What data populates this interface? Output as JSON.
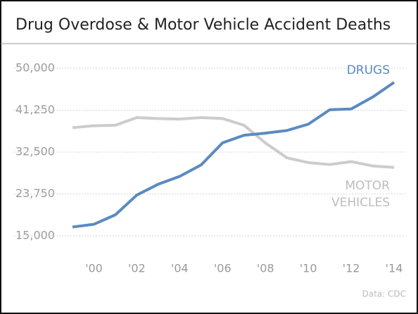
{
  "chart_data": {
    "type": "line",
    "title": "Drug Overdose & Motor Vehicle Accident Deaths",
    "source": "Data: CDC",
    "categories": [
      null,
      "'00",
      null,
      "'02",
      null,
      "'04",
      null,
      "'06",
      null,
      "'08",
      null,
      "'10",
      null,
      "'12",
      null,
      "'14"
    ],
    "series": [
      {
        "name": "DRUGS",
        "color": "#5b8ac1",
        "values": [
          16849,
          17415,
          19394,
          23518,
          25785,
          27424,
          29813,
          34425,
          36010,
          36450,
          37004,
          38329,
          41340,
          41502,
          43982,
          47055
        ]
      },
      {
        "name": "MOTOR VEHICLES",
        "color": "#cccccc",
        "values": [
          37600,
          38000,
          38100,
          39700,
          39500,
          39400,
          39700,
          39500,
          38100,
          34400,
          31300,
          30300,
          29900,
          30500,
          29600,
          29300
        ]
      }
    ],
    "ylim": [
      15000,
      50000
    ],
    "yticks": [
      {
        "value": 15000,
        "label": "15,000"
      },
      {
        "value": 23750,
        "label": "23,750"
      },
      {
        "value": 32500,
        "label": "32,500"
      },
      {
        "value": 41250,
        "label": "41,250"
      },
      {
        "value": 50000,
        "label": "50,000"
      }
    ],
    "grid": true
  }
}
